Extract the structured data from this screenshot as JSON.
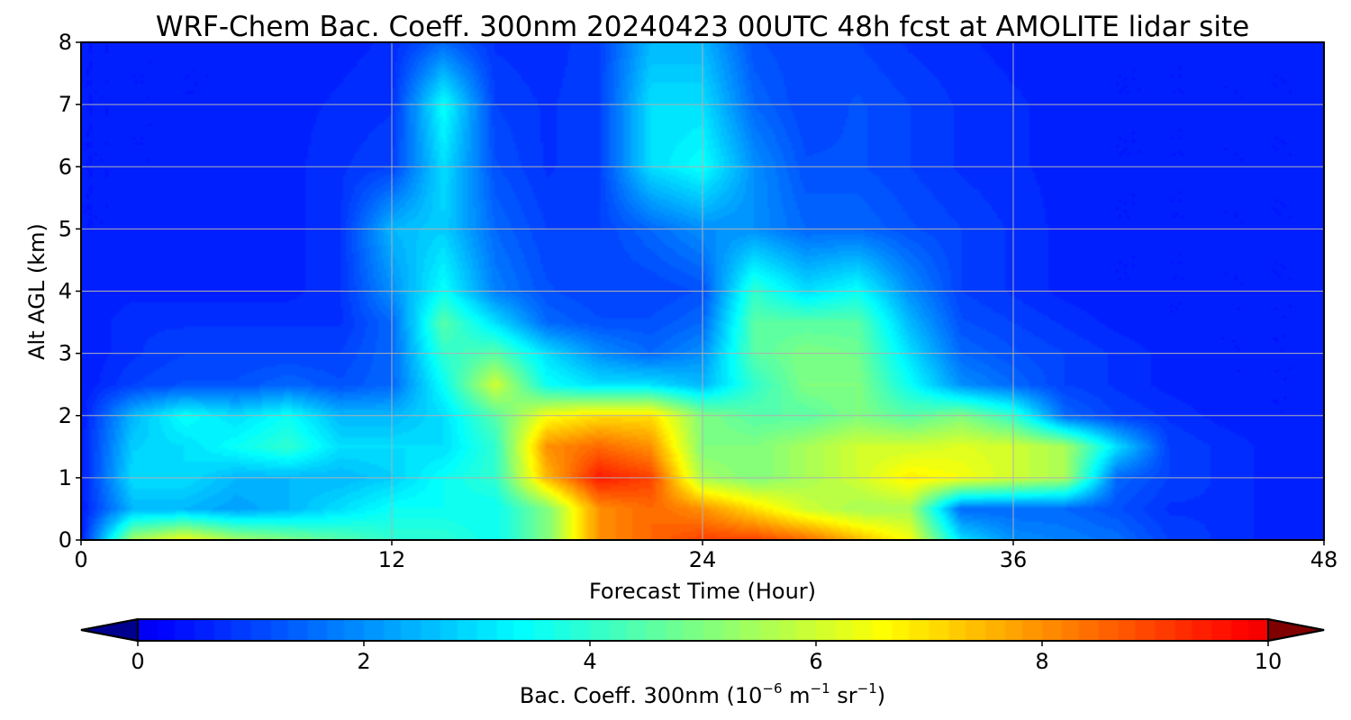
{
  "chart_data": {
    "type": "heatmap",
    "title": "WRF-Chem Bac. Coeff. 300nm  20240423 00UTC 48h fcst at AMOLITE lidar site",
    "xlabel": "Forecast Time (Hour)",
    "ylabel": "Alt AGL (km)",
    "xlim": [
      0,
      48
    ],
    "ylim": [
      0,
      8
    ],
    "xticks": [
      0,
      12,
      24,
      36,
      48
    ],
    "yticks": [
      0,
      1,
      2,
      3,
      4,
      5,
      6,
      7,
      8
    ],
    "grid": true,
    "colormap": "jet",
    "colorbar": {
      "label_text": "Bac. Coeff. 300nm  (10",
      "exp1": "−6",
      "label_mid": " m",
      "exp2": "−1",
      "label_mid2": " sr",
      "exp3": "−1",
      "label_end": ")",
      "ticks": [
        0,
        2,
        4,
        6,
        8,
        10
      ],
      "range": [
        0,
        10
      ],
      "extend": "both"
    },
    "x": [
      0,
      2,
      4,
      6,
      8,
      10,
      12,
      14,
      16,
      18,
      20,
      22,
      24,
      26,
      28,
      30,
      32,
      34,
      36,
      38,
      40,
      42,
      44,
      46,
      48
    ],
    "y": [
      0,
      0.5,
      1,
      1.5,
      2,
      2.5,
      3,
      3.5,
      4,
      5,
      6,
      7,
      8
    ],
    "z": [
      [
        0.5,
        5.5,
        6.5,
        5.5,
        5.0,
        4.5,
        4.0,
        4.0,
        3.5,
        5.0,
        8.0,
        8.5,
        9.0,
        9.0,
        8.5,
        7.5,
        6.5,
        3.0,
        2.0,
        1.8,
        1.6,
        1.0,
        0.8,
        0.6,
        0.5
      ],
      [
        0.5,
        2.5,
        2.5,
        2.2,
        2.5,
        3.0,
        3.5,
        3.5,
        3.5,
        5.0,
        8.0,
        8.5,
        8.0,
        7.0,
        6.0,
        5.5,
        5.5,
        1.5,
        1.5,
        1.5,
        1.2,
        0.8,
        0.8,
        0.6,
        0.5
      ],
      [
        0.5,
        3.0,
        3.0,
        2.5,
        2.5,
        2.5,
        2.8,
        3.5,
        4.0,
        7.5,
        9.5,
        9.0,
        5.5,
        5.0,
        5.5,
        6.0,
        6.8,
        6.5,
        6.0,
        5.5,
        1.5,
        1.0,
        0.8,
        0.6,
        0.5
      ],
      [
        0.5,
        2.8,
        3.0,
        3.5,
        4.0,
        3.0,
        3.0,
        3.0,
        4.0,
        8.0,
        8.5,
        8.0,
        5.0,
        5.0,
        5.5,
        6.0,
        6.0,
        6.2,
        6.0,
        5.5,
        3.0,
        1.0,
        0.8,
        0.6,
        0.5
      ],
      [
        0.5,
        2.5,
        3.5,
        3.0,
        3.5,
        2.5,
        2.5,
        3.0,
        4.5,
        6.5,
        7.0,
        7.0,
        5.0,
        4.5,
        4.5,
        5.0,
        4.5,
        5.0,
        4.0,
        1.5,
        1.0,
        0.8,
        0.6,
        0.5,
        0.5
      ],
      [
        0.5,
        1.0,
        1.2,
        1.2,
        1.5,
        1.2,
        1.5,
        3.5,
        6.0,
        3.5,
        3.0,
        3.0,
        2.5,
        4.0,
        5.0,
        5.0,
        3.5,
        2.0,
        1.5,
        1.0,
        0.8,
        0.6,
        0.5,
        0.5,
        0.5
      ],
      [
        0.5,
        0.8,
        1.0,
        1.0,
        1.0,
        1.0,
        1.5,
        4.0,
        4.5,
        3.0,
        2.0,
        1.5,
        2.0,
        4.5,
        5.0,
        4.8,
        3.0,
        1.5,
        1.2,
        1.0,
        0.8,
        0.6,
        0.5,
        0.5,
        0.5
      ],
      [
        0.5,
        0.8,
        0.8,
        0.8,
        0.8,
        0.8,
        1.5,
        4.5,
        3.0,
        1.5,
        1.2,
        1.2,
        1.5,
        4.5,
        4.5,
        4.5,
        2.5,
        1.2,
        1.0,
        0.8,
        0.6,
        0.5,
        0.5,
        0.5,
        0.5
      ],
      [
        0.5,
        0.6,
        0.6,
        0.6,
        0.6,
        0.8,
        2.0,
        3.5,
        1.8,
        1.2,
        1.0,
        1.0,
        1.2,
        4.0,
        3.0,
        3.5,
        2.0,
        1.0,
        0.8,
        0.6,
        0.5,
        0.5,
        0.5,
        0.5,
        0.5
      ],
      [
        0.5,
        0.5,
        0.6,
        0.6,
        0.6,
        0.8,
        2.5,
        2.8,
        1.5,
        1.0,
        1.0,
        1.5,
        2.0,
        2.0,
        1.5,
        1.5,
        1.2,
        1.0,
        0.8,
        0.6,
        0.5,
        0.5,
        0.5,
        0.5,
        0.5
      ],
      [
        0.5,
        0.5,
        0.5,
        0.6,
        0.6,
        0.8,
        1.0,
        3.0,
        1.2,
        0.8,
        1.0,
        3.0,
        3.5,
        2.0,
        1.2,
        1.2,
        1.0,
        0.8,
        0.7,
        0.6,
        0.5,
        0.5,
        0.5,
        0.5,
        0.5
      ],
      [
        0.5,
        0.5,
        0.5,
        0.5,
        0.6,
        0.7,
        0.8,
        3.5,
        1.0,
        0.8,
        1.0,
        3.0,
        3.0,
        1.5,
        1.0,
        1.2,
        1.0,
        0.8,
        0.7,
        0.6,
        0.5,
        0.5,
        0.5,
        0.5,
        0.5
      ],
      [
        0.5,
        0.5,
        0.5,
        0.5,
        0.5,
        0.6,
        0.7,
        1.5,
        0.8,
        0.7,
        1.0,
        2.5,
        2.5,
        1.2,
        1.0,
        1.0,
        0.8,
        0.7,
        0.6,
        0.5,
        0.5,
        0.5,
        0.5,
        0.5,
        0.5
      ]
    ]
  }
}
